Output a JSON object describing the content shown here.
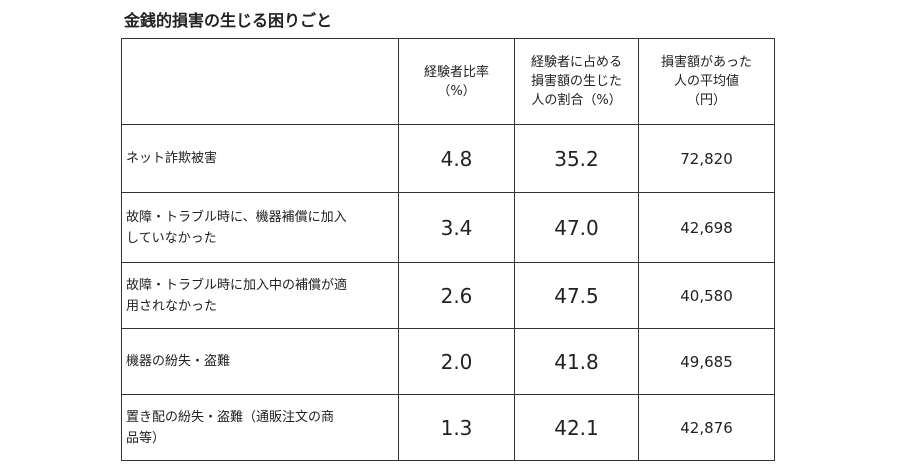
{
  "title": "金銭的損害の生じる困りごと",
  "table": {
    "header": [
      [
        "経験者比率",
        "（%）"
      ],
      [
        "経験者に占める",
        "損害額の生じた",
        "人の割合（%）"
      ],
      [
        "損害額があった",
        "人の平均値",
        "（円）"
      ]
    ],
    "rows": [
      {
        "label": [
          "ネット詐欺被害"
        ],
        "cells": [
          "4.8",
          "35.2",
          "72,820"
        ]
      },
      {
        "label": [
          "故障・トラブル時に、機器補償に加入",
          "していなかった"
        ],
        "cells": [
          "3.4",
          "47.0",
          "42,698"
        ]
      },
      {
        "label": [
          "故障・トラブル時に加入中の補償が適",
          "用されなかった"
        ],
        "cells": [
          "2.6",
          "47.5",
          "40,580"
        ]
      },
      {
        "label": [
          "機器の紛失・盗難"
        ],
        "cells": [
          "2.0",
          "41.8",
          "49,685"
        ]
      },
      {
        "label": [
          "置き配の紛失・盗難（通販注文の商",
          "品等）"
        ],
        "cells": [
          "1.3",
          "42.1",
          "42,876"
        ]
      }
    ]
  }
}
